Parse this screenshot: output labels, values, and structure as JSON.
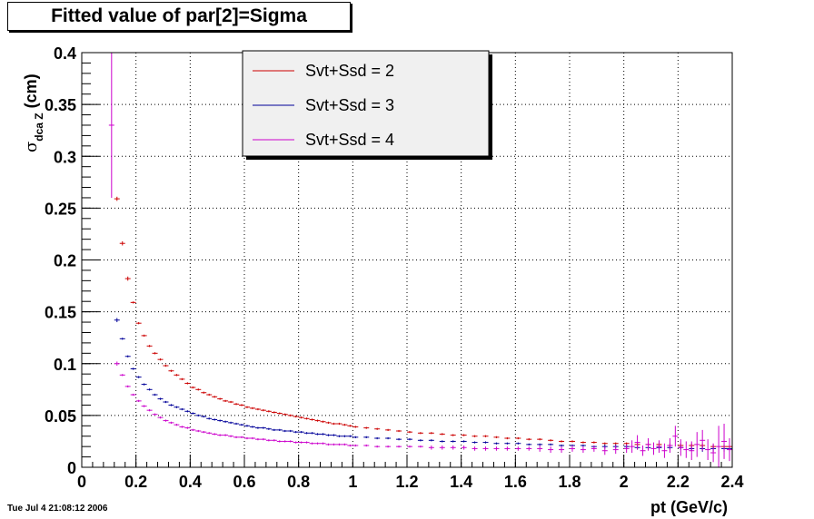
{
  "title": "Fitted value of par[2]=Sigma",
  "timestamp": "Tue Jul  4 21:08:12 2006",
  "chart_data": {
    "type": "scatter",
    "title": "Fitted value of par[2]=Sigma",
    "xlabel": "pt (GeV/c)",
    "ylabel_main": "σ",
    "ylabel_sub": "dca Z",
    "ylabel_unit": " (cm)",
    "xlim": [
      0,
      2.4
    ],
    "ylim": [
      0,
      0.4
    ],
    "xticks": [
      "0",
      "0.2",
      "0.4",
      "0.6",
      "0.8",
      "1",
      "1.2",
      "1.4",
      "1.6",
      "1.8",
      "2",
      "2.2",
      "2.4"
    ],
    "yticks": [
      "0",
      "0.05",
      "0.1",
      "0.15",
      "0.2",
      "0.25",
      "0.3",
      "0.35",
      "0.4"
    ],
    "grid": true,
    "legend_position": "top-center",
    "series": [
      {
        "name": "Svt+Ssd = 2",
        "color": "#cc0000",
        "x": [
          0.13,
          0.15,
          0.17,
          0.19,
          0.21,
          0.23,
          0.25,
          0.27,
          0.29,
          0.31,
          0.33,
          0.35,
          0.37,
          0.39,
          0.41,
          0.43,
          0.45,
          0.47,
          0.49,
          0.51,
          0.53,
          0.55,
          0.57,
          0.59,
          0.61,
          0.63,
          0.65,
          0.67,
          0.69,
          0.71,
          0.73,
          0.75,
          0.77,
          0.79,
          0.81,
          0.83,
          0.85,
          0.87,
          0.89,
          0.91,
          0.93,
          0.95,
          0.97,
          0.99,
          1.01,
          1.05,
          1.09,
          1.13,
          1.17,
          1.21,
          1.25,
          1.29,
          1.33,
          1.37,
          1.41,
          1.45,
          1.49,
          1.53,
          1.57,
          1.61,
          1.65,
          1.69,
          1.73,
          1.77,
          1.81,
          1.85,
          1.89,
          1.93,
          1.97,
          2.01,
          2.05,
          2.09,
          2.13,
          2.17,
          2.21,
          2.25,
          2.29,
          2.33,
          2.37,
          2.39
        ],
        "y": [
          0.259,
          0.216,
          0.182,
          0.159,
          0.139,
          0.127,
          0.117,
          0.11,
          0.104,
          0.098,
          0.093,
          0.089,
          0.085,
          0.081,
          0.077,
          0.075,
          0.072,
          0.07,
          0.068,
          0.066,
          0.064,
          0.063,
          0.061,
          0.06,
          0.058,
          0.057,
          0.056,
          0.055,
          0.054,
          0.053,
          0.052,
          0.051,
          0.05,
          0.049,
          0.048,
          0.047,
          0.046,
          0.045,
          0.044,
          0.043,
          0.042,
          0.042,
          0.041,
          0.04,
          0.039,
          0.038,
          0.037,
          0.036,
          0.035,
          0.034,
          0.033,
          0.033,
          0.032,
          0.031,
          0.031,
          0.03,
          0.03,
          0.029,
          0.028,
          0.028,
          0.027,
          0.027,
          0.026,
          0.025,
          0.025,
          0.024,
          0.024,
          0.023,
          0.023,
          0.023,
          0.022,
          0.022,
          0.022,
          0.021,
          0.021,
          0.021,
          0.021,
          0.02,
          0.02,
          0.02
        ],
        "err": [
          0.002,
          0.002,
          0.002,
          0.001,
          0.001,
          0.001,
          0.001,
          0.001,
          0.001,
          0.001,
          0.001,
          0.001,
          0.001,
          0.001,
          0.001,
          0.001,
          0.001,
          0.001,
          0.001,
          0.001,
          0.001,
          0.001,
          0.001,
          0.001,
          0.001,
          0.001,
          0.001,
          0.001,
          0.001,
          0.001,
          0.001,
          0.001,
          0.001,
          0.001,
          0.001,
          0.001,
          0.001,
          0.001,
          0.001,
          0.001,
          0.001,
          0.001,
          0.001,
          0.001,
          0.001,
          0.001,
          0.001,
          0.001,
          0.001,
          0.001,
          0.001,
          0.001,
          0.001,
          0.001,
          0.001,
          0.001,
          0.001,
          0.001,
          0.001,
          0.001,
          0.001,
          0.001,
          0.001,
          0.001,
          0.001,
          0.001,
          0.001,
          0.001,
          0.001,
          0.001,
          0.002,
          0.002,
          0.002,
          0.002,
          0.002,
          0.002,
          0.002,
          0.002,
          0.002,
          0.002
        ]
      },
      {
        "name": "Svt+Ssd = 3",
        "color": "#000099",
        "x": [
          0.13,
          0.15,
          0.17,
          0.19,
          0.21,
          0.23,
          0.25,
          0.27,
          0.29,
          0.31,
          0.33,
          0.35,
          0.37,
          0.39,
          0.41,
          0.43,
          0.45,
          0.47,
          0.49,
          0.51,
          0.53,
          0.55,
          0.57,
          0.59,
          0.61,
          0.63,
          0.65,
          0.67,
          0.69,
          0.71,
          0.73,
          0.75,
          0.77,
          0.79,
          0.81,
          0.83,
          0.85,
          0.87,
          0.89,
          0.91,
          0.93,
          0.95,
          0.97,
          0.99,
          1.01,
          1.05,
          1.09,
          1.13,
          1.17,
          1.21,
          1.25,
          1.29,
          1.33,
          1.37,
          1.41,
          1.45,
          1.49,
          1.53,
          1.57,
          1.61,
          1.65,
          1.69,
          1.73,
          1.77,
          1.81,
          1.85,
          1.89,
          1.93,
          1.97,
          2.01,
          2.05,
          2.09,
          2.13,
          2.17,
          2.21,
          2.25,
          2.29,
          2.33,
          2.37,
          2.39
        ],
        "y": [
          0.142,
          0.124,
          0.107,
          0.095,
          0.087,
          0.08,
          0.075,
          0.07,
          0.066,
          0.063,
          0.06,
          0.058,
          0.056,
          0.054,
          0.052,
          0.05,
          0.049,
          0.047,
          0.046,
          0.045,
          0.044,
          0.043,
          0.042,
          0.041,
          0.04,
          0.039,
          0.038,
          0.038,
          0.037,
          0.036,
          0.036,
          0.035,
          0.035,
          0.034,
          0.034,
          0.033,
          0.033,
          0.032,
          0.032,
          0.031,
          0.031,
          0.03,
          0.03,
          0.03,
          0.029,
          0.029,
          0.028,
          0.028,
          0.027,
          0.027,
          0.026,
          0.026,
          0.025,
          0.025,
          0.025,
          0.024,
          0.024,
          0.023,
          0.023,
          0.023,
          0.022,
          0.022,
          0.022,
          0.021,
          0.021,
          0.021,
          0.02,
          0.02,
          0.02,
          0.02,
          0.019,
          0.019,
          0.019,
          0.019,
          0.019,
          0.018,
          0.018,
          0.018,
          0.018,
          0.018
        ],
        "err": [
          0.002,
          0.001,
          0.001,
          0.001,
          0.001,
          0.001,
          0.001,
          0.001,
          0.001,
          0.001,
          0.001,
          0.001,
          0.001,
          0.001,
          0.001,
          0.001,
          0.001,
          0.001,
          0.001,
          0.001,
          0.001,
          0.001,
          0.001,
          0.001,
          0.001,
          0.001,
          0.001,
          0.001,
          0.001,
          0.001,
          0.001,
          0.001,
          0.001,
          0.001,
          0.001,
          0.001,
          0.001,
          0.001,
          0.001,
          0.001,
          0.001,
          0.001,
          0.001,
          0.001,
          0.001,
          0.001,
          0.001,
          0.001,
          0.001,
          0.001,
          0.001,
          0.001,
          0.001,
          0.001,
          0.001,
          0.001,
          0.001,
          0.001,
          0.001,
          0.001,
          0.001,
          0.001,
          0.001,
          0.001,
          0.001,
          0.001,
          0.001,
          0.002,
          0.002,
          0.002,
          0.002,
          0.002,
          0.002,
          0.002,
          0.002,
          0.002,
          0.003,
          0.003,
          0.003,
          0.003
        ]
      },
      {
        "name": "Svt+Ssd = 4",
        "color": "#cc00cc",
        "x": [
          0.11,
          0.13,
          0.15,
          0.17,
          0.19,
          0.21,
          0.23,
          0.25,
          0.27,
          0.29,
          0.31,
          0.33,
          0.35,
          0.37,
          0.39,
          0.41,
          0.43,
          0.45,
          0.47,
          0.49,
          0.51,
          0.53,
          0.55,
          0.57,
          0.59,
          0.61,
          0.63,
          0.65,
          0.67,
          0.69,
          0.71,
          0.73,
          0.75,
          0.77,
          0.79,
          0.81,
          0.83,
          0.85,
          0.87,
          0.89,
          0.91,
          0.93,
          0.95,
          0.97,
          0.99,
          1.01,
          1.05,
          1.09,
          1.13,
          1.17,
          1.21,
          1.25,
          1.29,
          1.33,
          1.37,
          1.41,
          1.45,
          1.49,
          1.53,
          1.57,
          1.61,
          1.65,
          1.69,
          1.73,
          1.77,
          1.81,
          1.85,
          1.89,
          1.93,
          1.97,
          2.01,
          2.03,
          2.05,
          2.07,
          2.09,
          2.11,
          2.13,
          2.15,
          2.17,
          2.19,
          2.21,
          2.23,
          2.25,
          2.27,
          2.29,
          2.31,
          2.33,
          2.35,
          2.37,
          2.39
        ],
        "y": [
          0.33,
          0.1,
          0.089,
          0.078,
          0.07,
          0.064,
          0.059,
          0.055,
          0.051,
          0.048,
          0.045,
          0.043,
          0.041,
          0.039,
          0.038,
          0.036,
          0.035,
          0.034,
          0.033,
          0.032,
          0.031,
          0.031,
          0.03,
          0.029,
          0.029,
          0.028,
          0.028,
          0.027,
          0.027,
          0.026,
          0.026,
          0.025,
          0.025,
          0.025,
          0.024,
          0.024,
          0.024,
          0.023,
          0.023,
          0.023,
          0.022,
          0.022,
          0.022,
          0.022,
          0.021,
          0.021,
          0.021,
          0.02,
          0.02,
          0.02,
          0.02,
          0.02,
          0.019,
          0.019,
          0.019,
          0.019,
          0.018,
          0.018,
          0.018,
          0.018,
          0.018,
          0.018,
          0.018,
          0.017,
          0.017,
          0.018,
          0.017,
          0.018,
          0.016,
          0.017,
          0.018,
          0.02,
          0.024,
          0.016,
          0.022,
          0.018,
          0.02,
          0.016,
          0.021,
          0.03,
          0.019,
          0.017,
          0.016,
          0.022,
          0.026,
          0.017,
          0.014,
          0.02,
          0.025,
          0.017
        ],
        "err": [
          0.07,
          0.002,
          0.001,
          0.001,
          0.001,
          0.001,
          0.001,
          0.001,
          0.001,
          0.001,
          0.001,
          0.001,
          0.001,
          0.001,
          0.001,
          0.001,
          0.001,
          0.001,
          0.001,
          0.001,
          0.001,
          0.001,
          0.001,
          0.001,
          0.001,
          0.001,
          0.001,
          0.001,
          0.001,
          0.001,
          0.001,
          0.001,
          0.001,
          0.001,
          0.001,
          0.001,
          0.001,
          0.001,
          0.001,
          0.001,
          0.001,
          0.001,
          0.001,
          0.001,
          0.001,
          0.001,
          0.001,
          0.001,
          0.001,
          0.001,
          0.001,
          0.001,
          0.002,
          0.002,
          0.002,
          0.002,
          0.002,
          0.002,
          0.002,
          0.002,
          0.002,
          0.002,
          0.003,
          0.003,
          0.003,
          0.003,
          0.003,
          0.003,
          0.004,
          0.004,
          0.004,
          0.006,
          0.007,
          0.005,
          0.006,
          0.006,
          0.006,
          0.007,
          0.007,
          0.01,
          0.008,
          0.008,
          0.009,
          0.012,
          0.01,
          0.01,
          0.009,
          0.02,
          0.017,
          0.011
        ]
      }
    ]
  }
}
